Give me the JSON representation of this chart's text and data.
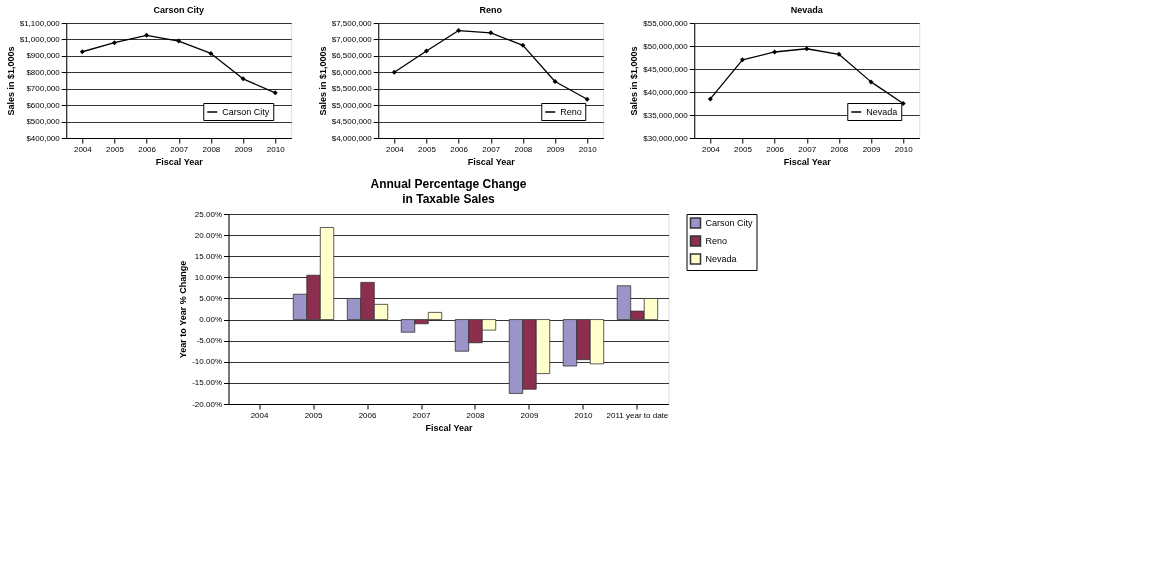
{
  "chart_data": [
    {
      "type": "line",
      "title": "Carson City",
      "xlabel": "Fiscal Year",
      "ylabel": "Sales in $1,000s",
      "categories": [
        "2004",
        "2005",
        "2006",
        "2007",
        "2008",
        "2009",
        "2010"
      ],
      "series": [
        {
          "name": "Carson City",
          "color": "#000000",
          "values": [
            925000,
            980000,
            1025000,
            990000,
            915000,
            760000,
            675000
          ]
        }
      ],
      "ylim": [
        400000,
        1100000
      ],
      "yticks": [
        {
          "value": 400000,
          "label": "$400,000"
        },
        {
          "value": 500000,
          "label": "$500,000"
        },
        {
          "value": 600000,
          "label": "$600,000"
        },
        {
          "value": 700000,
          "label": "$700,000"
        },
        {
          "value": 800000,
          "label": "$800,000"
        },
        {
          "value": 900000,
          "label": "$900,000"
        },
        {
          "value": 1000000,
          "label": "$1,000,000"
        },
        {
          "value": 1100000,
          "label": "$1,100,000"
        }
      ],
      "grid": "y",
      "legend": "bottom right",
      "marker": "diamond",
      "line_style": "solid"
    },
    {
      "type": "line",
      "title": "Reno",
      "xlabel": "Fiscal Year",
      "ylabel": "Sales in $1,000s",
      "categories": [
        "2004",
        "2005",
        "2006",
        "2007",
        "2008",
        "2009",
        "2010"
      ],
      "series": [
        {
          "name": "Reno",
          "color": "#000000",
          "values": [
            6000000,
            6650000,
            7270000,
            7200000,
            6820000,
            5720000,
            5180000
          ]
        }
      ],
      "ylim": [
        4000000,
        7500000
      ],
      "yticks": [
        {
          "value": 4000000,
          "label": "$4,000,000"
        },
        {
          "value": 4500000,
          "label": "$4,500,000"
        },
        {
          "value": 5000000,
          "label": "$5,000,000"
        },
        {
          "value": 5500000,
          "label": "$5,500,000"
        },
        {
          "value": 6000000,
          "label": "$6,000,000"
        },
        {
          "value": 6500000,
          "label": "$6,500,000"
        },
        {
          "value": 7000000,
          "label": "$7,000,000"
        },
        {
          "value": 7500000,
          "label": "$7,500,000"
        }
      ],
      "grid": "y",
      "legend": "bottom right",
      "marker": "diamond",
      "line_style": "solid"
    },
    {
      "type": "line",
      "title": "Nevada",
      "xlabel": "Fiscal Year",
      "ylabel": "Sales in $1,000s",
      "categories": [
        "2004",
        "2005",
        "2006",
        "2007",
        "2008",
        "2009",
        "2010"
      ],
      "series": [
        {
          "name": "Nevada",
          "color": "#000000",
          "values": [
            38500000,
            47000000,
            48700000,
            49400000,
            48200000,
            42200000,
            37500000
          ]
        }
      ],
      "ylim": [
        30000000,
        55000000
      ],
      "yticks": [
        {
          "value": 30000000,
          "label": "$30,000,000"
        },
        {
          "value": 35000000,
          "label": "$35,000,000"
        },
        {
          "value": 40000000,
          "label": "$40,000,000"
        },
        {
          "value": 45000000,
          "label": "$45,000,000"
        },
        {
          "value": 50000000,
          "label": "$50,000,000"
        },
        {
          "value": 55000000,
          "label": "$55,000,000"
        }
      ],
      "grid": "y",
      "legend": "bottom right",
      "marker": "diamond",
      "line_style": "solid"
    },
    {
      "type": "bar",
      "title": "Annual Percentage Change",
      "subtitle": "in Taxable Sales",
      "xlabel": "Fiscal Year",
      "ylabel": "Year to Year % Change",
      "categories": [
        "2004",
        "2005",
        "2006",
        "2007",
        "2008",
        "2009",
        "2010",
        "2011 year to date"
      ],
      "series": [
        {
          "name": "Carson City",
          "color": "#9a94c8",
          "values": [
            null,
            6,
            5,
            -3,
            -7.5,
            -17.5,
            -11,
            8
          ]
        },
        {
          "name": "Reno",
          "color": "#8c2f4f",
          "values": [
            null,
            10.5,
            8.8,
            -1,
            -5.5,
            -16.5,
            -9.5,
            2
          ]
        },
        {
          "name": "Nevada",
          "color": "#ffffcc",
          "values": [
            null,
            21.8,
            3.6,
            1.7,
            -2.5,
            -12.8,
            -10.5,
            5
          ]
        }
      ],
      "ylim": [
        -20,
        25
      ],
      "yticks": [
        {
          "value": -20,
          "label": "-20.00%"
        },
        {
          "value": -15,
          "label": "-15.00%"
        },
        {
          "value": -10,
          "label": "-10.00%"
        },
        {
          "value": -5,
          "label": "-5.00%"
        },
        {
          "value": 0,
          "label": "0.00%"
        },
        {
          "value": 5,
          "label": "5.00%"
        },
        {
          "value": 10,
          "label": "10.00%"
        },
        {
          "value": 15,
          "label": "15.00%"
        },
        {
          "value": 20,
          "label": "20.00%"
        },
        {
          "value": 25,
          "label": "25.00%"
        }
      ],
      "grid": "y",
      "legend": "right"
    }
  ]
}
